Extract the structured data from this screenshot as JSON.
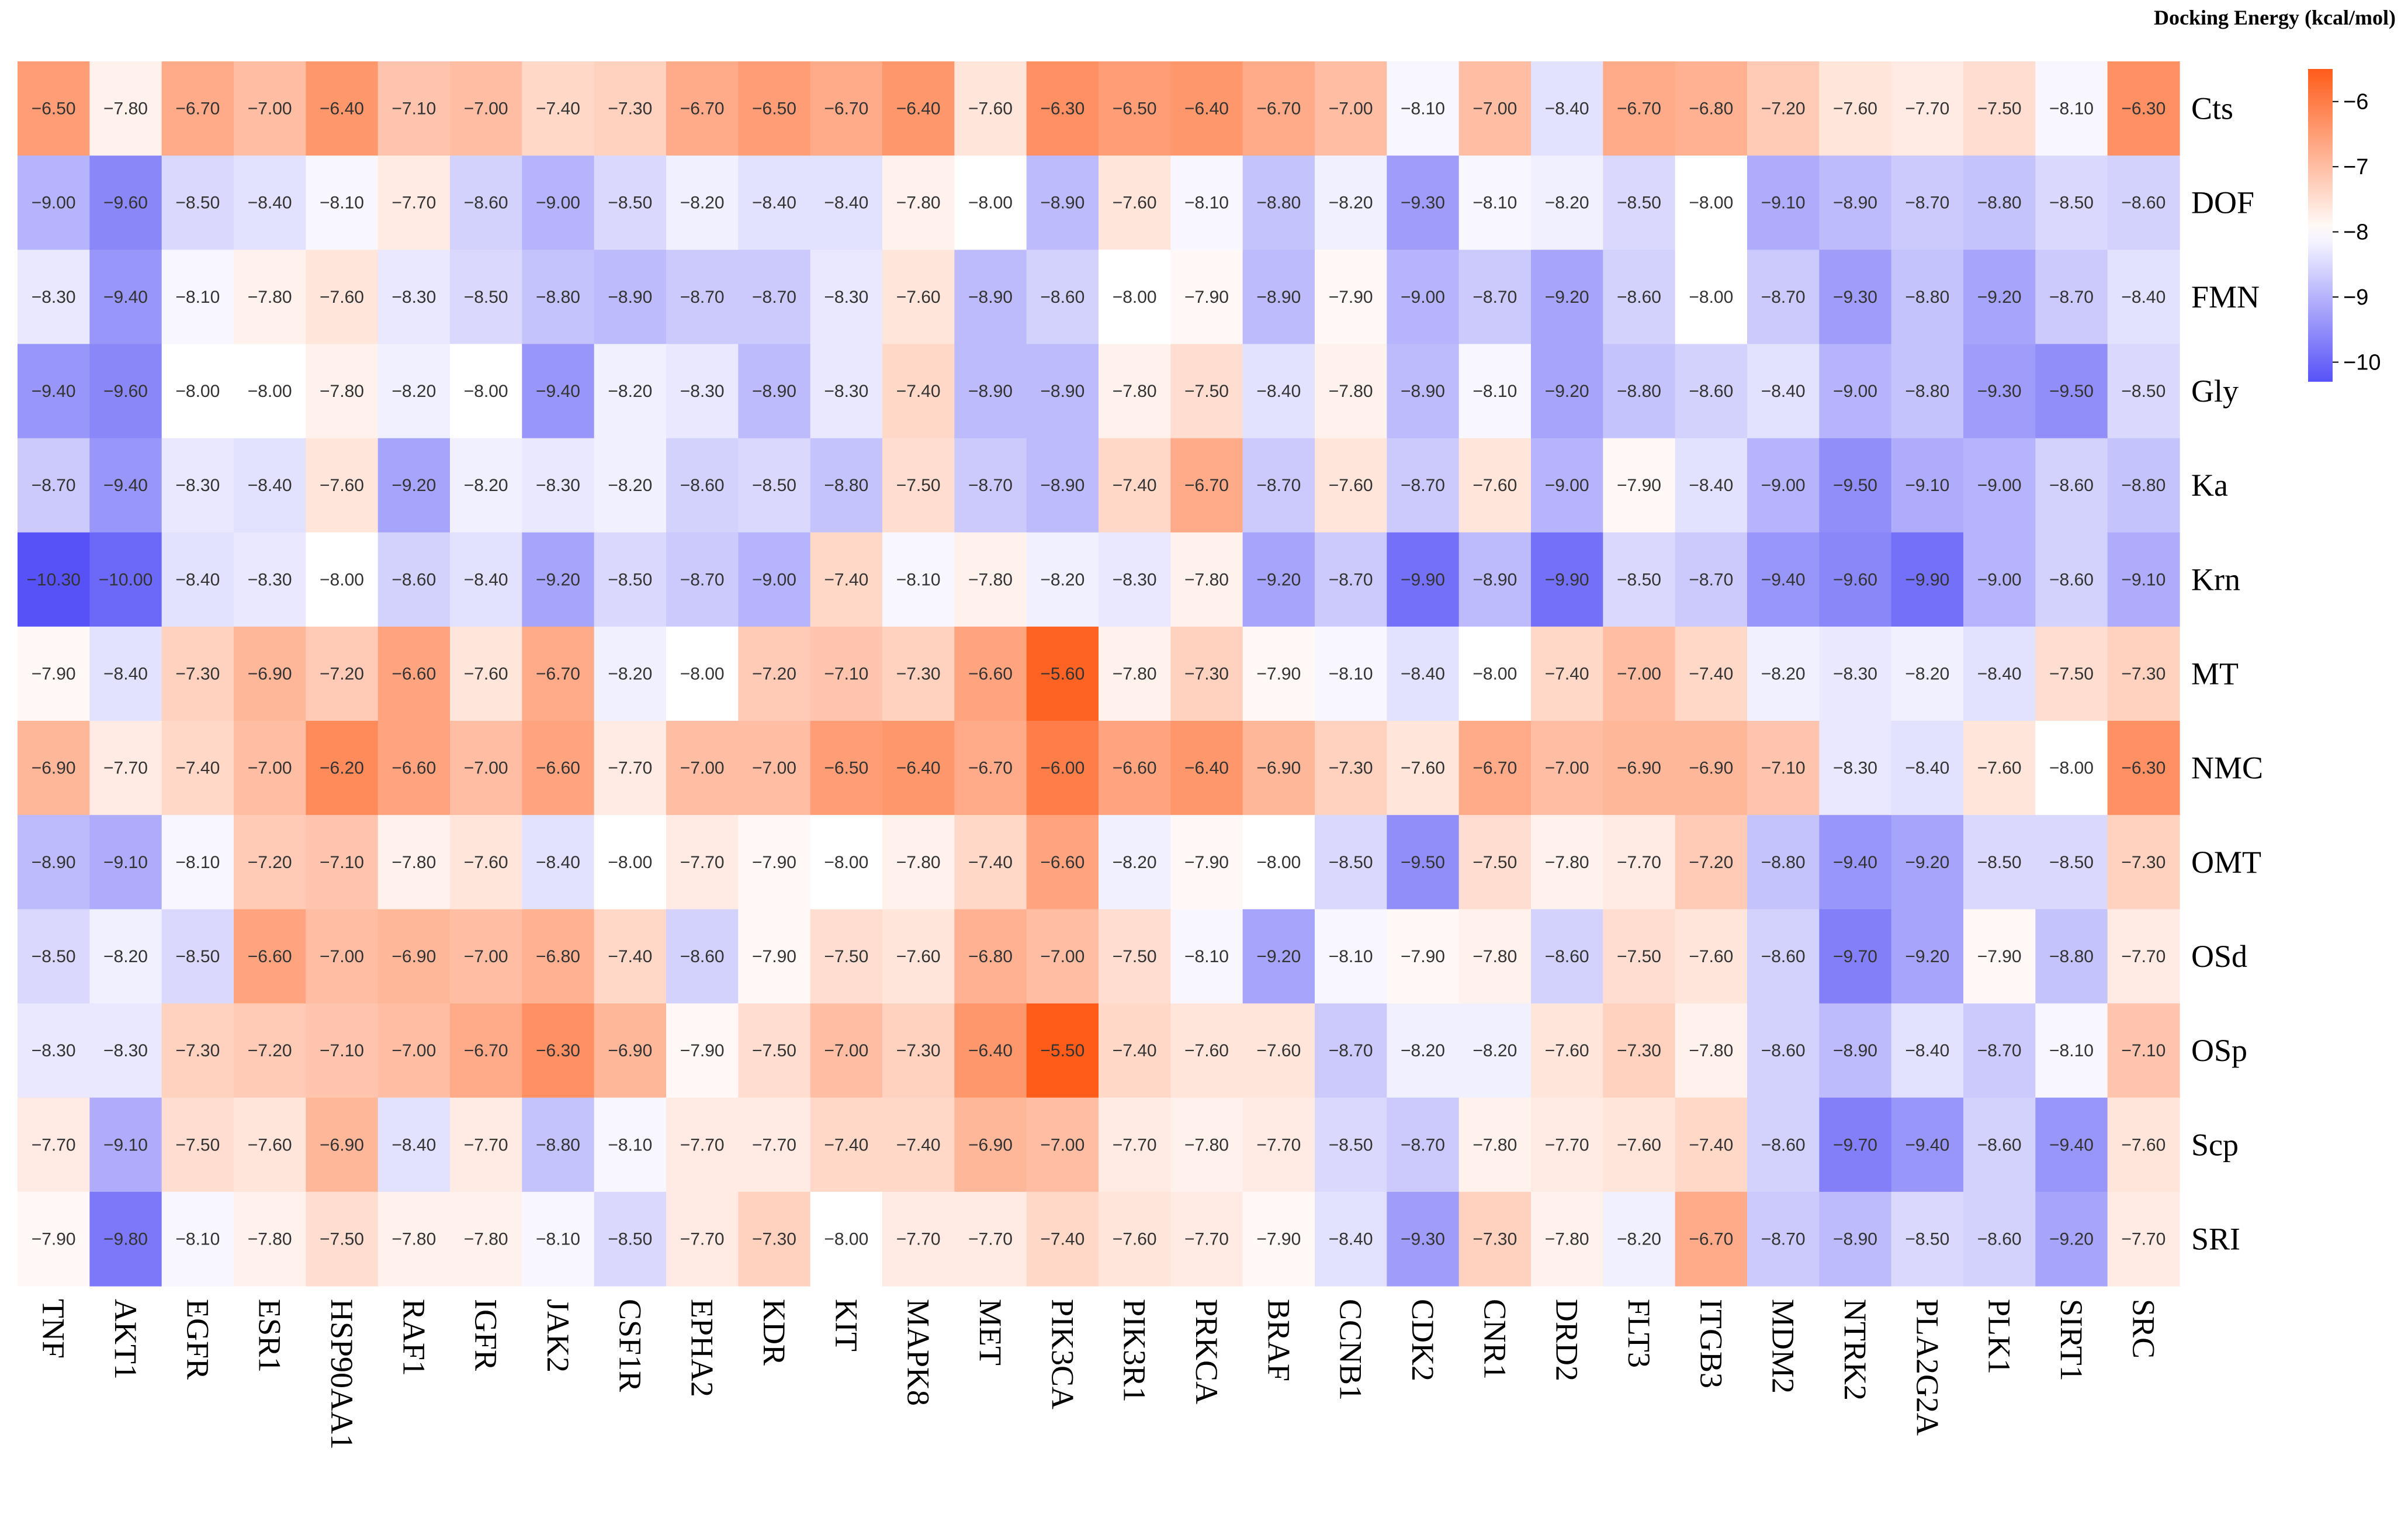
{
  "chart_data": {
    "type": "heatmap",
    "title": "",
    "legend_title": "Docking Energy (kcal/mol)",
    "columns": [
      "TNF",
      "AKT1",
      "EGFR",
      "ESR1",
      "HSP90AA1",
      "RAF1",
      "IGFR",
      "JAK2",
      "CSF1R",
      "EPHA2",
      "KDR",
      "KIT",
      "MAPK8",
      "MET",
      "PIK3CA",
      "PIK3R1",
      "PRKCA",
      "BRAF",
      "CCNB1",
      "CDK2",
      "CNR1",
      "DRD2",
      "FLT3",
      "ITGB3",
      "MDM2",
      "NTRK2",
      "PLA2G2A",
      "PLK1",
      "SIRT1",
      "SRC"
    ],
    "rows": [
      "Cts",
      "DOF",
      "FMN",
      "Gly",
      "Ka",
      "Krn",
      "MT",
      "NMC",
      "OMT",
      "OSd",
      "OSp",
      "Scp",
      "SRI"
    ],
    "values": [
      [
        -6.5,
        -7.8,
        -6.7,
        -7.0,
        -6.4,
        -7.1,
        -7.0,
        -7.4,
        -7.3,
        -6.7,
        -6.5,
        -6.7,
        -6.4,
        -7.6,
        -6.3,
        -6.5,
        -6.4,
        -6.7,
        -7.0,
        -8.1,
        -7.0,
        -8.4,
        -6.7,
        -6.8,
        -7.2,
        -7.6,
        -7.7,
        -7.5,
        -8.1,
        -6.3
      ],
      [
        -9.0,
        -9.6,
        -8.5,
        -8.4,
        -8.1,
        -7.7,
        -8.6,
        -9.0,
        -8.5,
        -8.2,
        -8.4,
        -8.4,
        -7.8,
        -8.0,
        -8.9,
        -7.6,
        -8.1,
        -8.8,
        -8.2,
        -9.3,
        -8.1,
        -8.2,
        -8.5,
        -8.0,
        -9.1,
        -8.9,
        -8.7,
        -8.8,
        -8.5,
        -8.6
      ],
      [
        -8.3,
        -9.4,
        -8.1,
        -7.8,
        -7.6,
        -8.3,
        -8.5,
        -8.8,
        -8.9,
        -8.7,
        -8.7,
        -8.3,
        -7.6,
        -8.9,
        -8.6,
        -8.0,
        -7.9,
        -8.9,
        -7.9,
        -9.0,
        -8.7,
        -9.2,
        -8.6,
        -8.0,
        -8.7,
        -9.3,
        -8.8,
        -9.2,
        -8.7,
        -8.4
      ],
      [
        -9.4,
        -9.6,
        -8.0,
        -8.0,
        -7.8,
        -8.2,
        -8.0,
        -9.4,
        -8.2,
        -8.3,
        -8.9,
        -8.3,
        -7.4,
        -8.9,
        -8.9,
        -7.8,
        -7.5,
        -8.4,
        -7.8,
        -8.9,
        -8.1,
        -9.2,
        -8.8,
        -8.6,
        -8.4,
        -9.0,
        -8.8,
        -9.3,
        -9.5,
        -8.5
      ],
      [
        -8.7,
        -9.4,
        -8.3,
        -8.4,
        -7.6,
        -9.2,
        -8.2,
        -8.3,
        -8.2,
        -8.6,
        -8.5,
        -8.8,
        -7.5,
        -8.7,
        -8.9,
        -7.4,
        -6.7,
        -8.7,
        -7.6,
        -8.7,
        -7.6,
        -9.0,
        -7.9,
        -8.4,
        -9.0,
        -9.5,
        -9.1,
        -9.0,
        -8.6,
        -8.8
      ],
      [
        -10.3,
        -10.0,
        -8.4,
        -8.3,
        -8.0,
        -8.6,
        -8.4,
        -9.2,
        -8.5,
        -8.7,
        -9.0,
        -7.4,
        -8.1,
        -7.8,
        -8.2,
        -8.3,
        -7.8,
        -9.2,
        -8.7,
        -9.9,
        -8.9,
        -9.9,
        -8.5,
        -8.7,
        -9.4,
        -9.6,
        -9.9,
        -9.0,
        -8.6,
        -9.1
      ],
      [
        -7.9,
        -8.4,
        -7.3,
        -6.9,
        -7.2,
        -6.6,
        -7.6,
        -6.7,
        -8.2,
        -8.0,
        -7.2,
        -7.1,
        -7.3,
        -6.6,
        -5.6,
        -7.8,
        -7.3,
        -7.9,
        -8.1,
        -8.4,
        -8.0,
        -7.4,
        -7.0,
        -7.4,
        -8.2,
        -8.3,
        -8.2,
        -8.4,
        -7.5,
        -7.3
      ],
      [
        -6.9,
        -7.7,
        -7.4,
        -7.0,
        -6.2,
        -6.6,
        -7.0,
        -6.6,
        -7.7,
        -7.0,
        -7.0,
        -6.5,
        -6.4,
        -6.7,
        -6.0,
        -6.6,
        -6.4,
        -6.9,
        -7.3,
        -7.6,
        -6.7,
        -7.0,
        -6.9,
        -6.9,
        -7.1,
        -8.3,
        -8.4,
        -7.6,
        -8.0,
        -6.3
      ],
      [
        -8.9,
        -9.1,
        -8.1,
        -7.2,
        -7.1,
        -7.8,
        -7.6,
        -8.4,
        -8.0,
        -7.7,
        -7.9,
        -8.0,
        -7.8,
        -7.4,
        -6.6,
        -8.2,
        -7.9,
        -8.0,
        -8.5,
        -9.5,
        -7.5,
        -7.8,
        -7.7,
        -7.2,
        -8.8,
        -9.4,
        -9.2,
        -8.5,
        -8.5,
        -7.3
      ],
      [
        -8.5,
        -8.2,
        -8.5,
        -6.6,
        -7.0,
        -6.9,
        -7.0,
        -6.8,
        -7.4,
        -8.6,
        -7.9,
        -7.5,
        -7.6,
        -6.8,
        -7.0,
        -7.5,
        -8.1,
        -9.2,
        -8.1,
        -7.9,
        -7.8,
        -8.6,
        -7.5,
        -7.6,
        -8.6,
        -9.7,
        -9.2,
        -7.9,
        -8.8,
        -7.7
      ],
      [
        -8.3,
        -8.3,
        -7.3,
        -7.2,
        -7.1,
        -7.0,
        -6.7,
        -6.3,
        -6.9,
        -7.9,
        -7.5,
        -7.0,
        -7.3,
        -6.4,
        -5.5,
        -7.4,
        -7.6,
        -7.6,
        -8.7,
        -8.2,
        -8.2,
        -7.6,
        -7.3,
        -7.8,
        -8.6,
        -8.9,
        -8.4,
        -8.7,
        -8.1,
        -7.1
      ],
      [
        -7.7,
        -9.1,
        -7.5,
        -7.6,
        -6.9,
        -8.4,
        -7.7,
        -8.8,
        -8.1,
        -7.7,
        -7.7,
        -7.4,
        -7.4,
        -6.9,
        -7.0,
        -7.7,
        -7.8,
        -7.7,
        -8.5,
        -8.7,
        -7.8,
        -7.7,
        -7.6,
        -7.4,
        -8.6,
        -9.7,
        -9.4,
        -8.6,
        -9.4,
        -7.6
      ],
      [
        -7.9,
        -9.8,
        -8.1,
        -7.8,
        -7.5,
        -7.8,
        -7.8,
        -8.1,
        -8.5,
        -7.7,
        -7.3,
        -8.0,
        -7.7,
        -7.7,
        -7.4,
        -7.6,
        -7.7,
        -7.9,
        -8.4,
        -9.3,
        -7.3,
        -7.8,
        -8.2,
        -6.7,
        -8.7,
        -8.9,
        -8.5,
        -8.6,
        -9.2,
        -7.7
      ]
    ],
    "color_range": [
      -10.3,
      -5.5
    ],
    "color_center": -8.0,
    "colors": {
      "low": "#5752f7",
      "mid": "#ffffff",
      "high": "#ff5c1a"
    },
    "legend_ticks": [
      -6,
      -7,
      -8,
      -9,
      -10
    ],
    "legend_placement": "right"
  }
}
